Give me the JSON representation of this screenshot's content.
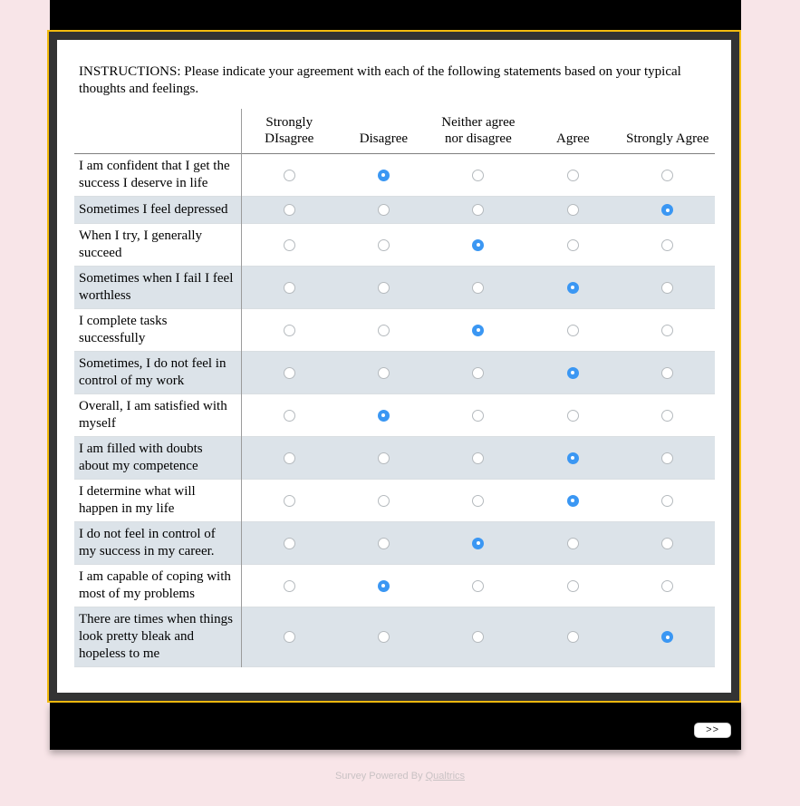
{
  "colors": {
    "page_background": "#f8e5e8",
    "bar_black": "#000000",
    "frame_dark": "#333333",
    "frame_gold": "#f2bb0f",
    "row_stripe": "#dce3e9",
    "radio_selected_blue": "#3b97f3"
  },
  "instructions": "INSTRUCTIONS: Please indicate your agreement with each of the following statements based on your typical thoughts and feelings.",
  "matrix": {
    "columns": [
      "Strongly DIsagree",
      "Disagree",
      "Neither agree nor disagree",
      "Agree",
      "Strongly Agree"
    ],
    "rows": [
      {
        "statement": "I am confident that I get the success I deserve in life",
        "selected": 1,
        "selected_label": "Disagree"
      },
      {
        "statement": "Sometimes I feel depressed",
        "selected": 4,
        "selected_label": "Strongly Agree"
      },
      {
        "statement": "When I try, I generally succeed",
        "selected": 2,
        "selected_label": "Neither agree nor disagree"
      },
      {
        "statement": "Sometimes when I fail I feel worthless",
        "selected": 3,
        "selected_label": "Agree"
      },
      {
        "statement": "I complete tasks successfully",
        "selected": 2,
        "selected_label": "Neither agree nor disagree"
      },
      {
        "statement": "Sometimes, I do not feel in control of my work",
        "selected": 3,
        "selected_label": "Agree"
      },
      {
        "statement": "Overall, I am satisfied with myself",
        "selected": 1,
        "selected_label": "Disagree"
      },
      {
        "statement": "I am filled with doubts about my competence",
        "selected": 3,
        "selected_label": "Agree"
      },
      {
        "statement": "I determine what will happen in my life",
        "selected": 3,
        "selected_label": "Agree"
      },
      {
        "statement": "I do not feel in control of my success in my career.",
        "selected": 2,
        "selected_label": "Neither agree nor disagree"
      },
      {
        "statement": "I am capable of coping with most of my problems",
        "selected": 1,
        "selected_label": "Disagree"
      },
      {
        "statement": "There are times when things look pretty bleak and hopeless to me",
        "selected": 4,
        "selected_label": "Strongly Agree"
      }
    ]
  },
  "footer": {
    "next_label": ">>"
  },
  "powered_by": {
    "prefix": "Survey Powered By ",
    "link": "Qualtrics"
  }
}
